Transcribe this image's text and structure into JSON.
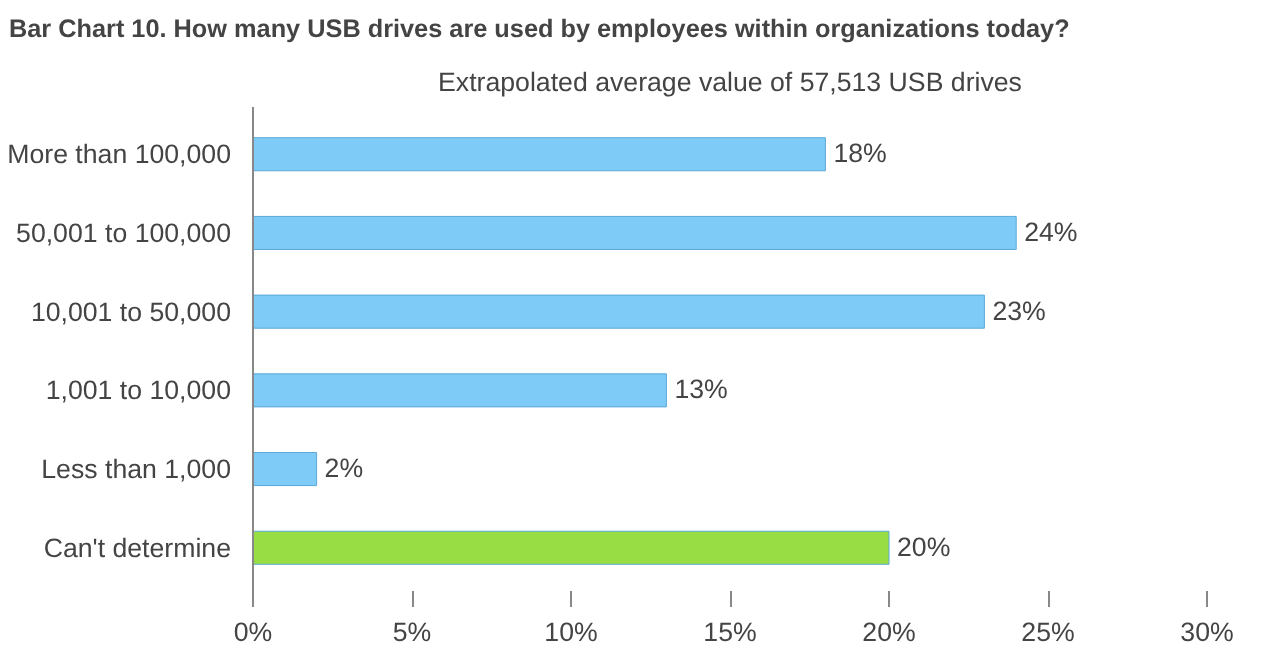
{
  "chart_data": {
    "type": "bar",
    "orientation": "horizontal",
    "title": "Bar Chart 10. How many USB drives are used by employees within organizations today?",
    "subtitle": "Extrapolated average value of 57,513 USB drives",
    "categories": [
      "More than 100,000",
      "50,001 to 100,000",
      "10,001 to 50,000",
      "1,001 to 10,000",
      "Less than 1,000",
      "Can't determine"
    ],
    "values": [
      18,
      24,
      23,
      13,
      2,
      20
    ],
    "colors": [
      "#7fcbf7",
      "#7fcbf7",
      "#7fcbf7",
      "#7fcbf7",
      "#7fcbf7",
      "#99dd44"
    ],
    "value_labels": [
      "18%",
      "24%",
      "23%",
      "13%",
      "2%",
      "20%"
    ],
    "xlim": [
      0,
      30
    ],
    "xticks": [
      {
        "value": 0,
        "label": "0%"
      },
      {
        "value": 5,
        "label": "5%"
      },
      {
        "value": 10,
        "label": "10%"
      },
      {
        "value": 15,
        "label": "15%"
      },
      {
        "value": 20,
        "label": "20%"
      },
      {
        "value": 25,
        "label": "25%"
      },
      {
        "value": 30,
        "label": "30%"
      }
    ],
    "grid": false
  }
}
